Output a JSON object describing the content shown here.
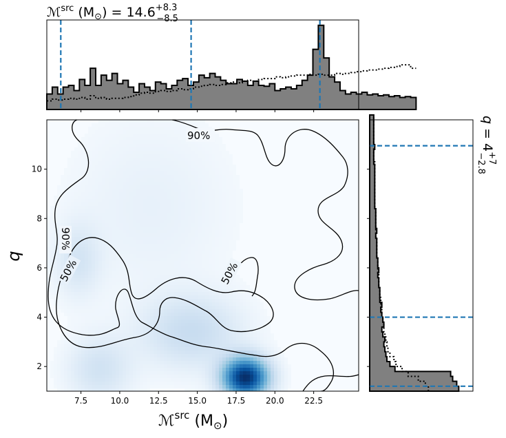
{
  "chart_data": [
    {
      "id": "joint",
      "type": "heatmap",
      "xlabel_main": "ℳ",
      "xlabel_sup": "src",
      "xlabel_units": "(M",
      "xlabel_units_sub": "⊙",
      "xlabel_close": ")",
      "ylabel": "q",
      "xlim": [
        5.3,
        25.4
      ],
      "ylim": [
        1.0,
        12.0
      ],
      "xticks": [
        7.5,
        10.0,
        12.5,
        15.0,
        17.5,
        20.0,
        22.5
      ],
      "xticklabels": [
        "7.5",
        "10.0",
        "12.5",
        "15.0",
        "17.5",
        "20.0",
        "22.5"
      ],
      "yticks": [
        2,
        4,
        6,
        8,
        10
      ],
      "yticklabels": [
        "2",
        "4",
        "6",
        "8",
        "10"
      ],
      "density_peaks": [
        {
          "x": 18.1,
          "y": 1.55,
          "weight": 1.0,
          "sx": 1.0,
          "sy": 0.55
        },
        {
          "x": 14.6,
          "y": 3.4,
          "weight": 0.18,
          "sx": 2.2,
          "sy": 1.0
        },
        {
          "x": 8.7,
          "y": 1.9,
          "weight": 0.14,
          "sx": 1.4,
          "sy": 0.9
        },
        {
          "x": 7.3,
          "y": 6.3,
          "weight": 0.12,
          "sx": 1.0,
          "sy": 1.0
        },
        {
          "x": 12.0,
          "y": 8.5,
          "weight": 0.05,
          "sx": 3.5,
          "sy": 2.5
        }
      ],
      "contour_labels": {
        "c90_top": "90%",
        "c90_left": "90%",
        "c50_left": "50%",
        "c50_mid": "50%"
      },
      "colormap": [
        "#f7fbff",
        "#deebf7",
        "#c6dbef",
        "#9ecae1",
        "#6baed6",
        "#4292c6",
        "#2171b5",
        "#08519c",
        "#08306b"
      ]
    },
    {
      "id": "mc_marginal",
      "type": "histogram",
      "title_main": "ℳ",
      "title_sup": "src",
      "title_units": "(M",
      "title_units_sub": "⊙",
      "title_rest": ") = 14.6",
      "title_plus": "+8.3",
      "title_minus": "−8.5",
      "median": 14.6,
      "interval": [
        6.2,
        22.9
      ],
      "xlim": [
        5.3,
        25.4
      ],
      "bins_start": 5.3,
      "bin_width": 0.35,
      "posterior": [
        0.18,
        0.26,
        0.18,
        0.26,
        0.28,
        0.22,
        0.35,
        0.28,
        0.48,
        0.28,
        0.4,
        0.34,
        0.42,
        0.3,
        0.34,
        0.26,
        0.2,
        0.3,
        0.26,
        0.22,
        0.32,
        0.3,
        0.24,
        0.28,
        0.34,
        0.36,
        0.28,
        0.32,
        0.4,
        0.37,
        0.42,
        0.38,
        0.34,
        0.3,
        0.3,
        0.35,
        0.33,
        0.28,
        0.33,
        0.28,
        0.27,
        0.3,
        0.22,
        0.24,
        0.26,
        0.24,
        0.28,
        0.34,
        0.4,
        0.7,
        0.98,
        0.6,
        0.38,
        0.32,
        0.22,
        0.18,
        0.2,
        0.18,
        0.2,
        0.17,
        0.18,
        0.16,
        0.17,
        0.15,
        0.16,
        0.14,
        0.15,
        0.14
      ],
      "prior": [
        0.1,
        0.12,
        0.11,
        0.12,
        0.13,
        0.12,
        0.14,
        0.12,
        0.16,
        0.13,
        0.14,
        0.12,
        0.13,
        0.13,
        0.14,
        0.15,
        0.17,
        0.19,
        0.2,
        0.19,
        0.21,
        0.22,
        0.21,
        0.22,
        0.24,
        0.23,
        0.24,
        0.26,
        0.27,
        0.28,
        0.29,
        0.28,
        0.29,
        0.31,
        0.32,
        0.31,
        0.33,
        0.34,
        0.33,
        0.35,
        0.36,
        0.36,
        0.38,
        0.37,
        0.38,
        0.39,
        0.4,
        0.4,
        0.41,
        0.4,
        0.41,
        0.4,
        0.4,
        0.42,
        0.41,
        0.42,
        0.43,
        0.44,
        0.45,
        0.46,
        0.46,
        0.47,
        0.48,
        0.49,
        0.5,
        0.52,
        0.52,
        0.48
      ]
    },
    {
      "id": "q_marginal",
      "type": "histogram",
      "title_main": "q",
      "title_rest": " = 4",
      "title_plus": "+7",
      "title_minus": "−2.8",
      "median": 4.0,
      "interval": [
        1.2,
        10.95
      ],
      "ylim": [
        1.0,
        12.0
      ],
      "bins_start": 1.0,
      "bin_width": 0.2,
      "posterior": [
        0.88,
        0.86,
        0.82,
        0.8,
        0.25,
        0.2,
        0.17,
        0.16,
        0.15,
        0.14,
        0.15,
        0.13,
        0.12,
        0.14,
        0.13,
        0.12,
        0.11,
        0.12,
        0.1,
        0.1,
        0.1,
        0.09,
        0.09,
        0.08,
        0.09,
        0.08,
        0.08,
        0.07,
        0.07,
        0.07,
        0.07,
        0.06,
        0.07,
        0.06,
        0.06,
        0.06,
        0.06,
        0.05,
        0.05,
        0.05,
        0.05,
        0.05,
        0.05,
        0.05,
        0.05,
        0.05,
        0.04,
        0.04,
        0.04,
        0.05,
        0.04,
        0.04,
        0.04,
        0.04,
        0.04,
        0.04
      ],
      "prior": [
        0.58,
        0.55,
        0.48,
        0.38,
        0.32,
        0.26,
        0.24,
        0.2,
        0.18,
        0.17,
        0.16,
        0.15,
        0.14,
        0.14,
        0.13,
        0.12,
        0.12,
        0.11,
        0.11,
        0.1,
        0.1,
        0.09,
        0.09,
        0.09,
        0.08,
        0.08,
        0.08,
        0.07,
        0.07,
        0.07,
        0.07,
        0.06,
        0.06,
        0.06,
        0.06,
        0.06,
        0.06,
        0.05,
        0.05,
        0.05,
        0.05,
        0.05,
        0.05,
        0.05,
        0.05,
        0.05,
        0.05,
        0.04,
        0.04,
        0.04,
        0.04,
        0.04,
        0.04,
        0.04,
        0.04,
        0.04
      ]
    }
  ]
}
